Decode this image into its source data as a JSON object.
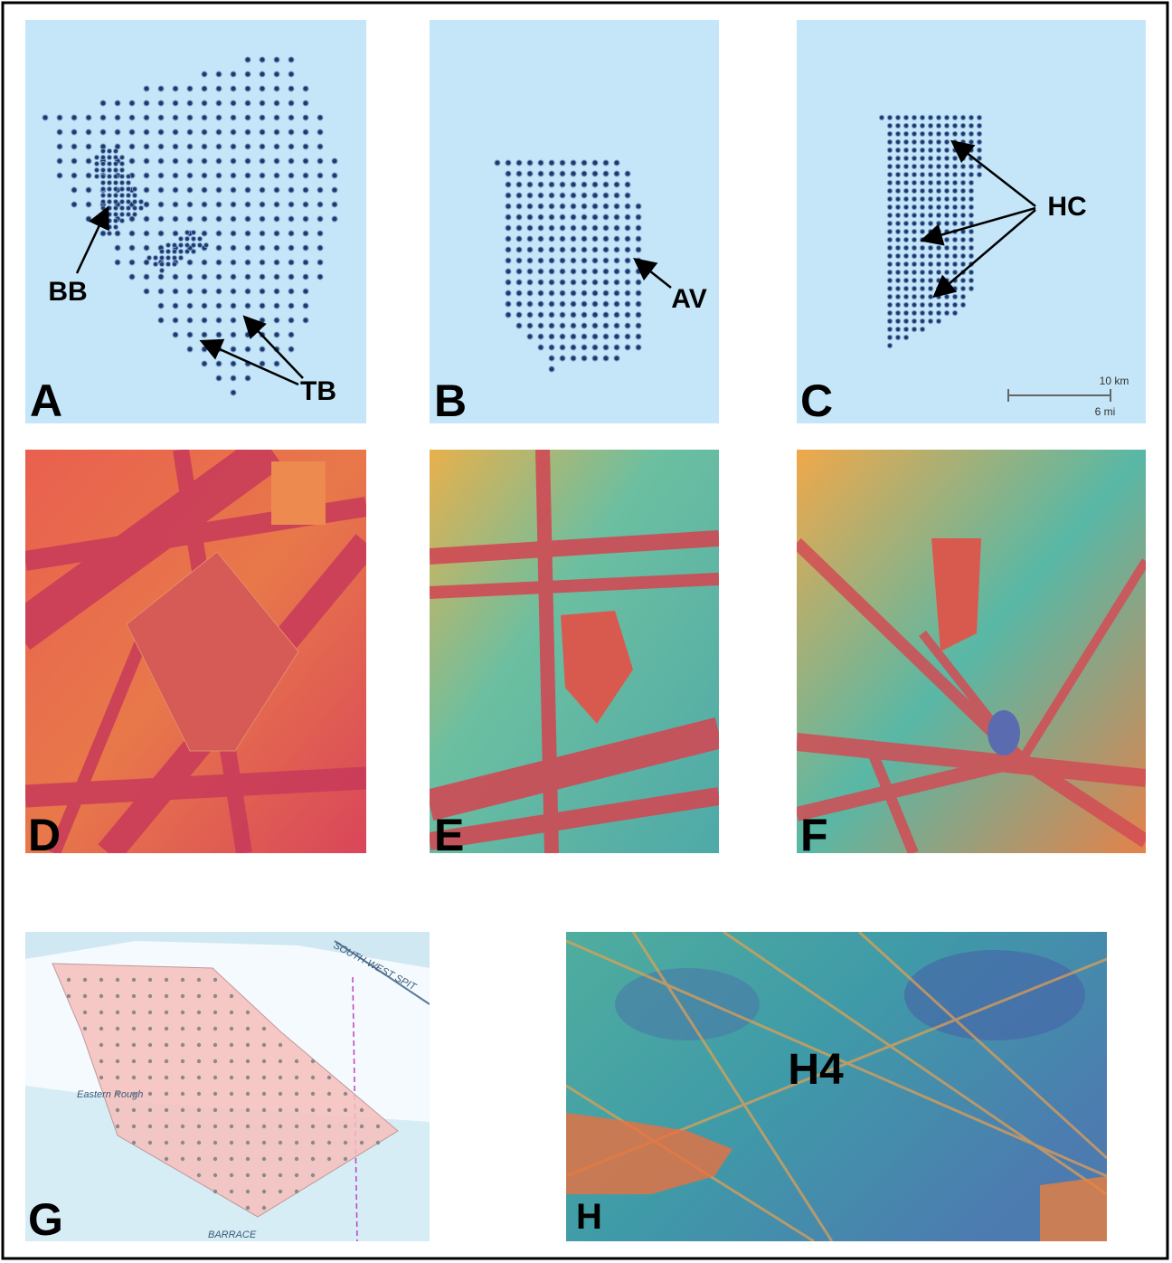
{
  "panels": [
    {
      "label": "A",
      "annotations": [
        "BB",
        "TB"
      ]
    },
    {
      "label": "B",
      "annotations": [
        "AV"
      ]
    },
    {
      "label": "C",
      "annotations": [
        "HC"
      ]
    },
    {
      "label": "D"
    },
    {
      "label": "E"
    },
    {
      "label": "F"
    },
    {
      "label": "G"
    },
    {
      "label": "H",
      "annotations": [
        "H4"
      ]
    }
  ],
  "scale_bar": {
    "upper": "10 km",
    "lower": "6 mi"
  },
  "chart_text": [
    "SOUTH-WEST SPIT",
    "Eastern Rough",
    "BARRACE"
  ]
}
